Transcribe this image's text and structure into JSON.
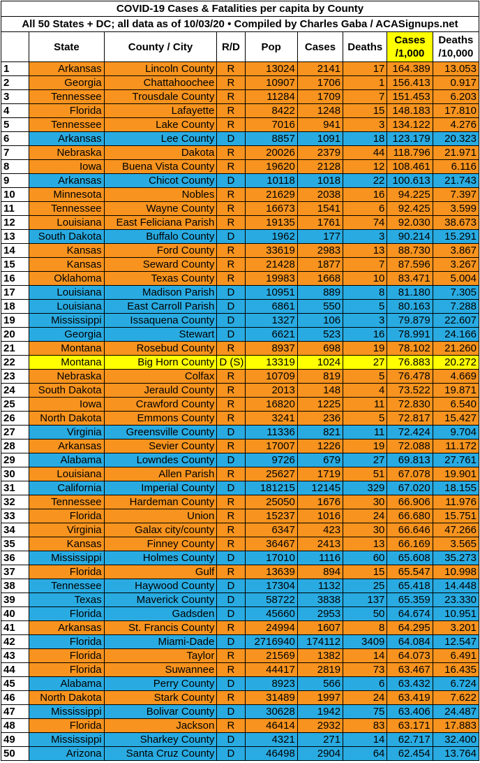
{
  "header": {
    "title": "COVID-19 Cases & Fatalities per capita by County",
    "subtitle": "All 50 States + DC; all data as of 10/03/20  • Compiled by Charles Gaba / ACASignups.net"
  },
  "table": {
    "columns": [
      "State",
      "County / City",
      "R/D",
      "Pop",
      "Cases",
      "Deaths",
      "Cases\n/1,000",
      "Deaths\n/10,000"
    ],
    "highlight_column_color": "#ffff00",
    "rows": [
      [
        "1",
        "Arkansas",
        "Lincoln County",
        "R",
        "13024",
        "2141",
        "17",
        "164.389",
        "13.053"
      ],
      [
        "2",
        "Georgia",
        "Chattahoochee",
        "R",
        "10907",
        "1706",
        "1",
        "156.413",
        "0.917"
      ],
      [
        "3",
        "Tennessee",
        "Trousdale County",
        "R",
        "11284",
        "1709",
        "7",
        "151.453",
        "6.203"
      ],
      [
        "4",
        "Florida",
        "Lafayette",
        "R",
        "8422",
        "1248",
        "15",
        "148.183",
        "17.810"
      ],
      [
        "5",
        "Tennessee",
        "Lake County",
        "R",
        "7016",
        "941",
        "3",
        "134.122",
        "4.276"
      ],
      [
        "6",
        "Arkansas",
        "Lee County",
        "D",
        "8857",
        "1091",
        "18",
        "123.179",
        "20.323"
      ],
      [
        "7",
        "Nebraska",
        "Dakota",
        "R",
        "20026",
        "2379",
        "44",
        "118.796",
        "21.971"
      ],
      [
        "8",
        "Iowa",
        "Buena Vista County",
        "R",
        "19620",
        "2128",
        "12",
        "108.461",
        "6.116"
      ],
      [
        "9",
        "Arkansas",
        "Chicot County",
        "D",
        "10118",
        "1018",
        "22",
        "100.613",
        "21.743"
      ],
      [
        "10",
        "Minnesota",
        "Nobles",
        "R",
        "21629",
        "2038",
        "16",
        "94.225",
        "7.397"
      ],
      [
        "11",
        "Tennessee",
        "Wayne County",
        "R",
        "16673",
        "1541",
        "6",
        "92.425",
        "3.599"
      ],
      [
        "12",
        "Louisiana",
        "East Feliciana Parish",
        "R",
        "19135",
        "1761",
        "74",
        "92.030",
        "38.673"
      ],
      [
        "13",
        "South Dakota",
        "Buffalo County",
        "D",
        "1962",
        "177",
        "3",
        "90.214",
        "15.291"
      ],
      [
        "14",
        "Kansas",
        "Ford County",
        "R",
        "33619",
        "2983",
        "13",
        "88.730",
        "3.867"
      ],
      [
        "15",
        "Kansas",
        "Seward County",
        "R",
        "21428",
        "1877",
        "7",
        "87.596",
        "3.267"
      ],
      [
        "16",
        "Oklahoma",
        "Texas County",
        "R",
        "19983",
        "1668",
        "10",
        "83.471",
        "5.004"
      ],
      [
        "17",
        "Louisiana",
        "Madison Parish",
        "D",
        "10951",
        "889",
        "8",
        "81.180",
        "7.305"
      ],
      [
        "18",
        "Louisiana",
        "East Carroll Parish",
        "D",
        "6861",
        "550",
        "5",
        "80.163",
        "7.288"
      ],
      [
        "19",
        "Mississippi",
        "Issaquena County",
        "D",
        "1327",
        "106",
        "3",
        "79.879",
        "22.607"
      ],
      [
        "20",
        "Georgia",
        "Stewart",
        "D",
        "6621",
        "523",
        "16",
        "78.991",
        "24.166"
      ],
      [
        "21",
        "Montana",
        "Rosebud County",
        "R",
        "8937",
        "698",
        "19",
        "78.102",
        "21.260"
      ],
      [
        "22",
        "Montana",
        "Big Horn County",
        "D (S)",
        "13319",
        "1024",
        "27",
        "76.883",
        "20.272"
      ],
      [
        "23",
        "Nebraska",
        "Colfax",
        "R",
        "10709",
        "819",
        "5",
        "76.478",
        "4.669"
      ],
      [
        "24",
        "South Dakota",
        "Jerauld County",
        "R",
        "2013",
        "148",
        "4",
        "73.522",
        "19.871"
      ],
      [
        "25",
        "Iowa",
        "Crawford County",
        "R",
        "16820",
        "1225",
        "11",
        "72.830",
        "6.540"
      ],
      [
        "26",
        "North Dakota",
        "Emmons County",
        "R",
        "3241",
        "236",
        "5",
        "72.817",
        "15.427"
      ],
      [
        "27",
        "Virginia",
        "Greensville County",
        "D",
        "11336",
        "821",
        "11",
        "72.424",
        "9.704"
      ],
      [
        "28",
        "Arkansas",
        "Sevier County",
        "R",
        "17007",
        "1226",
        "19",
        "72.088",
        "11.172"
      ],
      [
        "29",
        "Alabama",
        "Lowndes County",
        "D",
        "9726",
        "679",
        "27",
        "69.813",
        "27.761"
      ],
      [
        "30",
        "Louisiana",
        "Allen Parish",
        "R",
        "25627",
        "1719",
        "51",
        "67.078",
        "19.901"
      ],
      [
        "31",
        "California",
        "Imperial County",
        "D",
        "181215",
        "12145",
        "329",
        "67.020",
        "18.155"
      ],
      [
        "32",
        "Tennessee",
        "Hardeman County",
        "R",
        "25050",
        "1676",
        "30",
        "66.906",
        "11.976"
      ],
      [
        "33",
        "Florida",
        "Union",
        "R",
        "15237",
        "1016",
        "24",
        "66.680",
        "15.751"
      ],
      [
        "34",
        "Virginia",
        "Galax city/county",
        "R",
        "6347",
        "423",
        "30",
        "66.646",
        "47.266"
      ],
      [
        "35",
        "Kansas",
        "Finney County",
        "R",
        "36467",
        "2413",
        "13",
        "66.169",
        "3.565"
      ],
      [
        "36",
        "Mississippi",
        "Holmes County",
        "D",
        "17010",
        "1116",
        "60",
        "65.608",
        "35.273"
      ],
      [
        "37",
        "Florida",
        "Gulf",
        "R",
        "13639",
        "894",
        "15",
        "65.547",
        "10.998"
      ],
      [
        "38",
        "Tennessee",
        "Haywood County",
        "D",
        "17304",
        "1132",
        "25",
        "65.418",
        "14.448"
      ],
      [
        "39",
        "Texas",
        "Maverick County",
        "D",
        "58722",
        "3838",
        "137",
        "65.359",
        "23.330"
      ],
      [
        "40",
        "Florida",
        "Gadsden",
        "D",
        "45660",
        "2953",
        "50",
        "64.674",
        "10.951"
      ],
      [
        "41",
        "Arkansas",
        "St. Francis County",
        "R",
        "24994",
        "1607",
        "8",
        "64.295",
        "3.201"
      ],
      [
        "42",
        "Florida",
        "Miami-Dade",
        "D",
        "2716940",
        "174112",
        "3409",
        "64.084",
        "12.547"
      ],
      [
        "43",
        "Florida",
        "Taylor",
        "R",
        "21569",
        "1382",
        "14",
        "64.073",
        "6.491"
      ],
      [
        "44",
        "Florida",
        "Suwannee",
        "R",
        "44417",
        "2819",
        "73",
        "63.467",
        "16.435"
      ],
      [
        "45",
        "Alabama",
        "Perry County",
        "D",
        "8923",
        "566",
        "6",
        "63.432",
        "6.724"
      ],
      [
        "46",
        "North Dakota",
        "Stark County",
        "R",
        "31489",
        "1997",
        "24",
        "63.419",
        "7.622"
      ],
      [
        "47",
        "Mississippi",
        "Bolivar County",
        "D",
        "30628",
        "1942",
        "75",
        "63.406",
        "24.487"
      ],
      [
        "48",
        "Florida",
        "Jackson",
        "R",
        "46414",
        "2932",
        "83",
        "63.171",
        "17.883"
      ],
      [
        "49",
        "Mississippi",
        "Sharkey County",
        "D",
        "4321",
        "271",
        "14",
        "62.717",
        "32.400"
      ],
      [
        "50",
        "Arizona",
        "Santa Cruz County",
        "D",
        "46498",
        "2904",
        "64",
        "62.454",
        "13.764"
      ]
    ],
    "row_colors": [
      "#f7931e",
      "#f7931e",
      "#f7931e",
      "#f7931e",
      "#f7931e",
      "#29abe2",
      "#f7931e",
      "#f7931e",
      "#29abe2",
      "#f7931e",
      "#f7931e",
      "#f7931e",
      "#29abe2",
      "#f7931e",
      "#f7931e",
      "#f7931e",
      "#29abe2",
      "#29abe2",
      "#29abe2",
      "#29abe2",
      "#f7931e",
      "#ffff00",
      "#f7931e",
      "#f7931e",
      "#f7931e",
      "#f7931e",
      "#29abe2",
      "#f7931e",
      "#29abe2",
      "#f7931e",
      "#29abe2",
      "#f7931e",
      "#f7931e",
      "#f7931e",
      "#f7931e",
      "#29abe2",
      "#f7931e",
      "#29abe2",
      "#29abe2",
      "#29abe2",
      "#f7931e",
      "#29abe2",
      "#f7931e",
      "#f7931e",
      "#29abe2",
      "#f7931e",
      "#29abe2",
      "#f7931e",
      "#29abe2",
      "#29abe2"
    ]
  }
}
